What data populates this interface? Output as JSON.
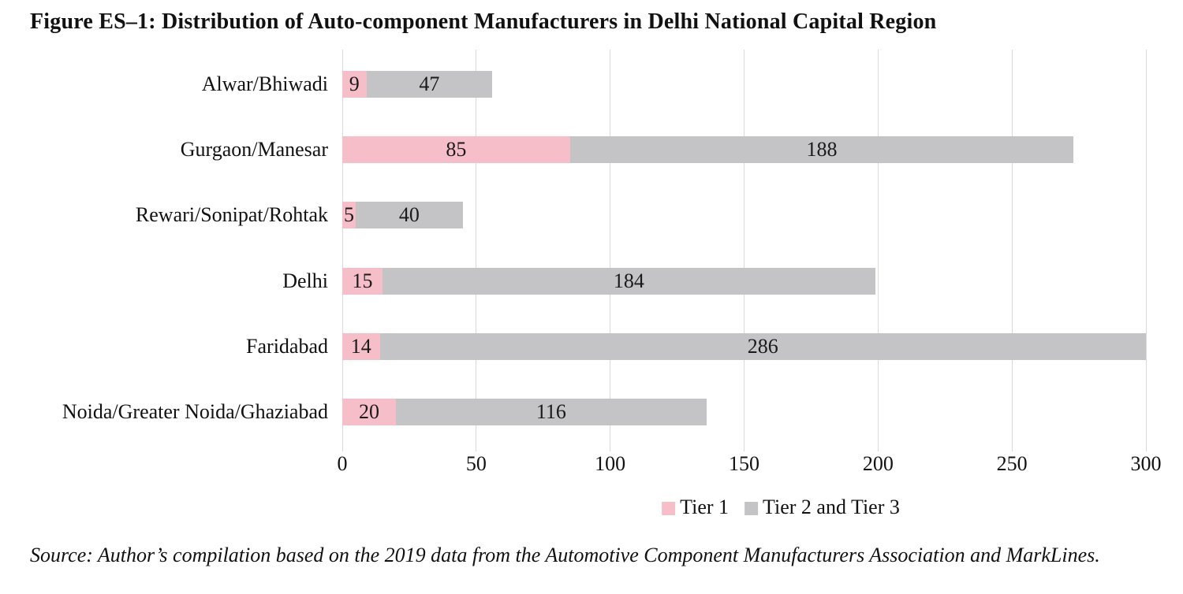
{
  "title": "Figure ES–1: Distribution of Auto-component Manufacturers in Delhi National Capital Region",
  "source_note": "Source: Author’s compilation based on the 2019 data from the Automotive Component Manufacturers Association and MarkLines.",
  "chart_data": {
    "type": "bar",
    "orientation": "horizontal",
    "stacked": true,
    "title": "Figure ES–1: Distribution of Auto-component Manufacturers in Delhi National Capital Region",
    "categories": [
      "Alwar/Bhiwadi",
      "Gurgaon/Manesar",
      "Rewari/Sonipat/Rohtak",
      "Delhi",
      "Faridabad",
      "Noida/Greater Noida/Ghaziabad"
    ],
    "series": [
      {
        "name": "Tier 1",
        "color": "#f6bec8",
        "values": [
          9,
          85,
          5,
          15,
          14,
          20
        ]
      },
      {
        "name": "Tier 2 and Tier 3",
        "color": "#c4c4c6",
        "values": [
          47,
          188,
          40,
          184,
          286,
          116
        ]
      }
    ],
    "xlabel": "",
    "ylabel": "",
    "xlim": [
      0,
      300
    ],
    "xticks": [
      0,
      50,
      100,
      150,
      200,
      250,
      300
    ],
    "grid": "vertical",
    "gridline_color": "#d9d9d9",
    "legend_position": "bottom-center",
    "data_labels": "inside-center"
  }
}
